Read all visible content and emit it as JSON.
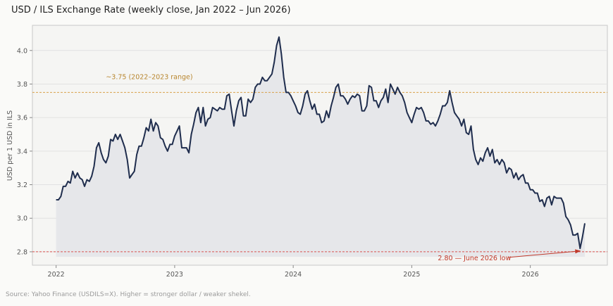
{
  "title": "USD / ILS Exchange Rate  (weekly close, Jan 2022 – Jun 2026)",
  "source_note": "Source: Yahoo Finance (USDILS=X). Higher = stronger dollar / weaker shekel.",
  "chart_data": {
    "type": "area",
    "title": "USD / ILS Exchange Rate  (weekly close, Jan 2022 – Jun 2026)",
    "xlabel": "",
    "ylabel": "USD per 1 USD in ILS",
    "xlim": [
      2021.8,
      2026.65
    ],
    "ylim": [
      2.72,
      4.15
    ],
    "x_ticks": [
      2022,
      2023,
      2024,
      2025,
      2026
    ],
    "x_tick_labels": [
      "2022",
      "2023",
      "2024",
      "2025",
      "2026"
    ],
    "y_ticks": [
      2.8,
      3.0,
      3.2,
      3.4,
      3.6,
      3.8,
      4.0
    ],
    "y_tick_labels": [
      "2.8",
      "3.0",
      "3.2",
      "3.4",
      "3.6",
      "3.8",
      "4.0"
    ],
    "grid": true,
    "colors": {
      "line": "#1f2d4d",
      "fill": "#e6e7ea",
      "range_line": "#d9a24c",
      "low_line": "#d9534f",
      "annotation_low": "#c0392b",
      "annotation_range": "#b8862e"
    },
    "reference_lines": [
      {
        "y": 3.75,
        "label": "~3.75 (2022–2023 range)"
      },
      {
        "y": 2.8,
        "label": "2.80 — June 2026 low"
      }
    ],
    "series": [
      {
        "values": [
          [
            2022.0,
            3.11
          ],
          [
            2022.02,
            3.11
          ],
          [
            2022.04,
            3.13
          ],
          [
            2022.06,
            3.19
          ],
          [
            2022.08,
            3.19
          ],
          [
            2022.1,
            3.22
          ],
          [
            2022.12,
            3.21
          ],
          [
            2022.14,
            3.28
          ],
          [
            2022.16,
            3.24
          ],
          [
            2022.18,
            3.27
          ],
          [
            2022.2,
            3.24
          ],
          [
            2022.22,
            3.23
          ],
          [
            2022.24,
            3.19
          ],
          [
            2022.26,
            3.23
          ],
          [
            2022.28,
            3.22
          ],
          [
            2022.3,
            3.25
          ],
          [
            2022.32,
            3.31
          ],
          [
            2022.34,
            3.42
          ],
          [
            2022.36,
            3.45
          ],
          [
            2022.38,
            3.39
          ],
          [
            2022.4,
            3.35
          ],
          [
            2022.42,
            3.33
          ],
          [
            2022.44,
            3.37
          ],
          [
            2022.46,
            3.47
          ],
          [
            2022.48,
            3.46
          ],
          [
            2022.5,
            3.5
          ],
          [
            2022.52,
            3.47
          ],
          [
            2022.54,
            3.5
          ],
          [
            2022.56,
            3.46
          ],
          [
            2022.58,
            3.42
          ],
          [
            2022.6,
            3.35
          ],
          [
            2022.62,
            3.24
          ],
          [
            2022.64,
            3.26
          ],
          [
            2022.66,
            3.28
          ],
          [
            2022.68,
            3.38
          ],
          [
            2022.7,
            3.43
          ],
          [
            2022.72,
            3.43
          ],
          [
            2022.74,
            3.48
          ],
          [
            2022.76,
            3.54
          ],
          [
            2022.78,
            3.52
          ],
          [
            2022.8,
            3.59
          ],
          [
            2022.82,
            3.52
          ],
          [
            2022.84,
            3.57
          ],
          [
            2022.86,
            3.55
          ],
          [
            2022.88,
            3.48
          ],
          [
            2022.9,
            3.47
          ],
          [
            2022.92,
            3.43
          ],
          [
            2022.94,
            3.4
          ],
          [
            2022.96,
            3.44
          ],
          [
            2022.98,
            3.44
          ],
          [
            2023.0,
            3.49
          ],
          [
            2023.02,
            3.52
          ],
          [
            2023.04,
            3.55
          ],
          [
            2023.06,
            3.42
          ],
          [
            2023.08,
            3.42
          ],
          [
            2023.1,
            3.42
          ],
          [
            2023.12,
            3.39
          ],
          [
            2023.14,
            3.5
          ],
          [
            2023.16,
            3.56
          ],
          [
            2023.18,
            3.63
          ],
          [
            2023.2,
            3.66
          ],
          [
            2023.22,
            3.57
          ],
          [
            2023.24,
            3.66
          ],
          [
            2023.26,
            3.55
          ],
          [
            2023.28,
            3.59
          ],
          [
            2023.3,
            3.6
          ],
          [
            2023.32,
            3.66
          ],
          [
            2023.34,
            3.65
          ],
          [
            2023.36,
            3.64
          ],
          [
            2023.38,
            3.66
          ],
          [
            2023.4,
            3.65
          ],
          [
            2023.42,
            3.65
          ],
          [
            2023.44,
            3.73
          ],
          [
            2023.46,
            3.74
          ],
          [
            2023.48,
            3.64
          ],
          [
            2023.5,
            3.55
          ],
          [
            2023.52,
            3.64
          ],
          [
            2023.54,
            3.7
          ],
          [
            2023.56,
            3.72
          ],
          [
            2023.58,
            3.61
          ],
          [
            2023.6,
            3.61
          ],
          [
            2023.62,
            3.71
          ],
          [
            2023.64,
            3.69
          ],
          [
            2023.66,
            3.71
          ],
          [
            2023.68,
            3.78
          ],
          [
            2023.7,
            3.8
          ],
          [
            2023.72,
            3.8
          ],
          [
            2023.74,
            3.84
          ],
          [
            2023.76,
            3.82
          ],
          [
            2023.78,
            3.82
          ],
          [
            2023.8,
            3.84
          ],
          [
            2023.82,
            3.86
          ],
          [
            2023.84,
            3.93
          ],
          [
            2023.86,
            4.03
          ],
          [
            2023.88,
            4.08
          ],
          [
            2023.9,
            3.98
          ],
          [
            2023.92,
            3.84
          ],
          [
            2023.94,
            3.75
          ],
          [
            2023.96,
            3.75
          ],
          [
            2023.98,
            3.73
          ],
          [
            2024.0,
            3.7
          ],
          [
            2024.02,
            3.67
          ],
          [
            2024.04,
            3.63
          ],
          [
            2024.06,
            3.62
          ],
          [
            2024.08,
            3.67
          ],
          [
            2024.1,
            3.74
          ],
          [
            2024.12,
            3.76
          ],
          [
            2024.14,
            3.7
          ],
          [
            2024.16,
            3.65
          ],
          [
            2024.18,
            3.68
          ],
          [
            2024.2,
            3.62
          ],
          [
            2024.22,
            3.62
          ],
          [
            2024.24,
            3.57
          ],
          [
            2024.26,
            3.58
          ],
          [
            2024.28,
            3.64
          ],
          [
            2024.3,
            3.6
          ],
          [
            2024.32,
            3.67
          ],
          [
            2024.34,
            3.72
          ],
          [
            2024.36,
            3.78
          ],
          [
            2024.38,
            3.8
          ],
          [
            2024.4,
            3.73
          ],
          [
            2024.42,
            3.73
          ],
          [
            2024.44,
            3.71
          ],
          [
            2024.46,
            3.68
          ],
          [
            2024.48,
            3.71
          ],
          [
            2024.5,
            3.73
          ],
          [
            2024.52,
            3.72
          ],
          [
            2024.54,
            3.74
          ],
          [
            2024.56,
            3.73
          ],
          [
            2024.58,
            3.64
          ],
          [
            2024.6,
            3.64
          ],
          [
            2024.62,
            3.67
          ],
          [
            2024.64,
            3.79
          ],
          [
            2024.66,
            3.78
          ],
          [
            2024.68,
            3.7
          ],
          [
            2024.7,
            3.7
          ],
          [
            2024.72,
            3.66
          ],
          [
            2024.74,
            3.7
          ],
          [
            2024.76,
            3.72
          ],
          [
            2024.78,
            3.77
          ],
          [
            2024.8,
            3.69
          ],
          [
            2024.82,
            3.8
          ],
          [
            2024.84,
            3.77
          ],
          [
            2024.86,
            3.74
          ],
          [
            2024.88,
            3.78
          ],
          [
            2024.9,
            3.75
          ],
          [
            2024.92,
            3.73
          ],
          [
            2024.94,
            3.69
          ],
          [
            2024.96,
            3.63
          ],
          [
            2024.98,
            3.6
          ],
          [
            2025.0,
            3.57
          ],
          [
            2025.02,
            3.62
          ],
          [
            2025.04,
            3.66
          ],
          [
            2025.06,
            3.65
          ],
          [
            2025.08,
            3.66
          ],
          [
            2025.1,
            3.63
          ],
          [
            2025.12,
            3.58
          ],
          [
            2025.14,
            3.58
          ],
          [
            2025.16,
            3.56
          ],
          [
            2025.18,
            3.57
          ],
          [
            2025.2,
            3.55
          ],
          [
            2025.22,
            3.58
          ],
          [
            2025.24,
            3.62
          ],
          [
            2025.26,
            3.67
          ],
          [
            2025.28,
            3.67
          ],
          [
            2025.3,
            3.69
          ],
          [
            2025.32,
            3.76
          ],
          [
            2025.34,
            3.69
          ],
          [
            2025.36,
            3.63
          ],
          [
            2025.38,
            3.61
          ],
          [
            2025.4,
            3.59
          ],
          [
            2025.42,
            3.55
          ],
          [
            2025.44,
            3.59
          ],
          [
            2025.46,
            3.51
          ],
          [
            2025.48,
            3.5
          ],
          [
            2025.5,
            3.55
          ],
          [
            2025.52,
            3.41
          ],
          [
            2025.54,
            3.35
          ],
          [
            2025.56,
            3.32
          ],
          [
            2025.58,
            3.36
          ],
          [
            2025.6,
            3.34
          ],
          [
            2025.62,
            3.39
          ],
          [
            2025.64,
            3.42
          ],
          [
            2025.66,
            3.37
          ],
          [
            2025.68,
            3.41
          ],
          [
            2025.7,
            3.33
          ],
          [
            2025.72,
            3.35
          ],
          [
            2025.74,
            3.32
          ],
          [
            2025.76,
            3.35
          ],
          [
            2025.78,
            3.33
          ],
          [
            2025.8,
            3.27
          ],
          [
            2025.82,
            3.3
          ],
          [
            2025.84,
            3.29
          ],
          [
            2025.86,
            3.24
          ],
          [
            2025.88,
            3.27
          ],
          [
            2025.9,
            3.23
          ],
          [
            2025.92,
            3.25
          ],
          [
            2025.94,
            3.26
          ],
          [
            2025.96,
            3.21
          ],
          [
            2025.98,
            3.21
          ],
          [
            2026.0,
            3.17
          ],
          [
            2026.02,
            3.17
          ],
          [
            2026.04,
            3.15
          ],
          [
            2026.06,
            3.15
          ],
          [
            2026.08,
            3.1
          ],
          [
            2026.1,
            3.11
          ],
          [
            2026.12,
            3.07
          ],
          [
            2026.14,
            3.12
          ],
          [
            2026.16,
            3.13
          ],
          [
            2026.18,
            3.08
          ],
          [
            2026.2,
            3.13
          ],
          [
            2026.22,
            3.12
          ],
          [
            2026.24,
            3.12
          ],
          [
            2026.26,
            3.12
          ],
          [
            2026.28,
            3.09
          ],
          [
            2026.3,
            3.01
          ],
          [
            2026.32,
            2.99
          ],
          [
            2026.34,
            2.96
          ],
          [
            2026.36,
            2.9
          ],
          [
            2026.38,
            2.9
          ],
          [
            2026.4,
            2.91
          ],
          [
            2026.42,
            2.82
          ],
          [
            2026.44,
            2.89
          ],
          [
            2026.46,
            2.97
          ]
        ]
      }
    ],
    "annotations": [
      {
        "text": "~3.75 (2022–2023 range)",
        "x": 2022.42,
        "y": 3.83
      },
      {
        "text": "2.80 — June 2026 low",
        "x": 2025.22,
        "y": 2.75,
        "arrow_to": [
          2026.42,
          2.805
        ]
      }
    ]
  }
}
